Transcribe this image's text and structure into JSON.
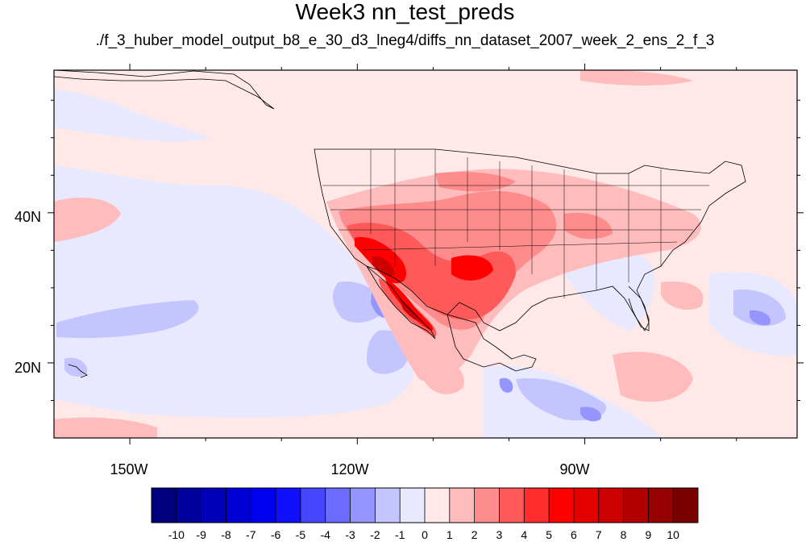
{
  "title": "Week3 nn_test_preds",
  "subtitle": "./f_3_huber_model_output_b8_e_30_d3_lneg4/diffs_nn_dataset_2007_week_2_ens_2_f_3",
  "lon_labels": [
    "150W",
    "120W",
    "90W"
  ],
  "lat_labels": [
    "40N",
    "20N"
  ],
  "map_extent": {
    "lon_min": -160,
    "lon_max": -62,
    "lat_min": 10,
    "lat_max": 59
  },
  "colorbar": {
    "labels": [
      "-10",
      "-9",
      "-8",
      "-7",
      "-6",
      "-5",
      "-4",
      "-3",
      "-2",
      "-1",
      "0",
      "1",
      "2",
      "3",
      "4",
      "5",
      "6",
      "7",
      "8",
      "9",
      "10"
    ],
    "colors": [
      "#00007f",
      "#00009c",
      "#0000b8",
      "#0000d5",
      "#0000f1",
      "#1010ff",
      "#4646ff",
      "#6b6bff",
      "#9595ff",
      "#c4c4ff",
      "#e8e8ff",
      "#ffe8e8",
      "#ffbcbc",
      "#ff8c8c",
      "#ff5a5a",
      "#ff2d2d",
      "#ff0000",
      "#e50000",
      "#cc0000",
      "#b00000",
      "#960000",
      "#7a0000"
    ]
  },
  "field": {
    "background_color": "#ffe8e8",
    "negative_regions": [
      {
        "level": -1,
        "color": "#e8e8ff"
      },
      {
        "level": -2,
        "color": "#c4c4ff"
      },
      {
        "level": -3,
        "color": "#9595ff"
      }
    ],
    "positive_regions": [
      {
        "level": 1,
        "color": "#ffbcbc"
      },
      {
        "level": 2,
        "color": "#ff8c8c"
      },
      {
        "level": 4,
        "color": "#ff5a5a"
      },
      {
        "level": 6,
        "color": "#ff0000"
      },
      {
        "level": 8,
        "color": "#cc0000"
      }
    ]
  }
}
